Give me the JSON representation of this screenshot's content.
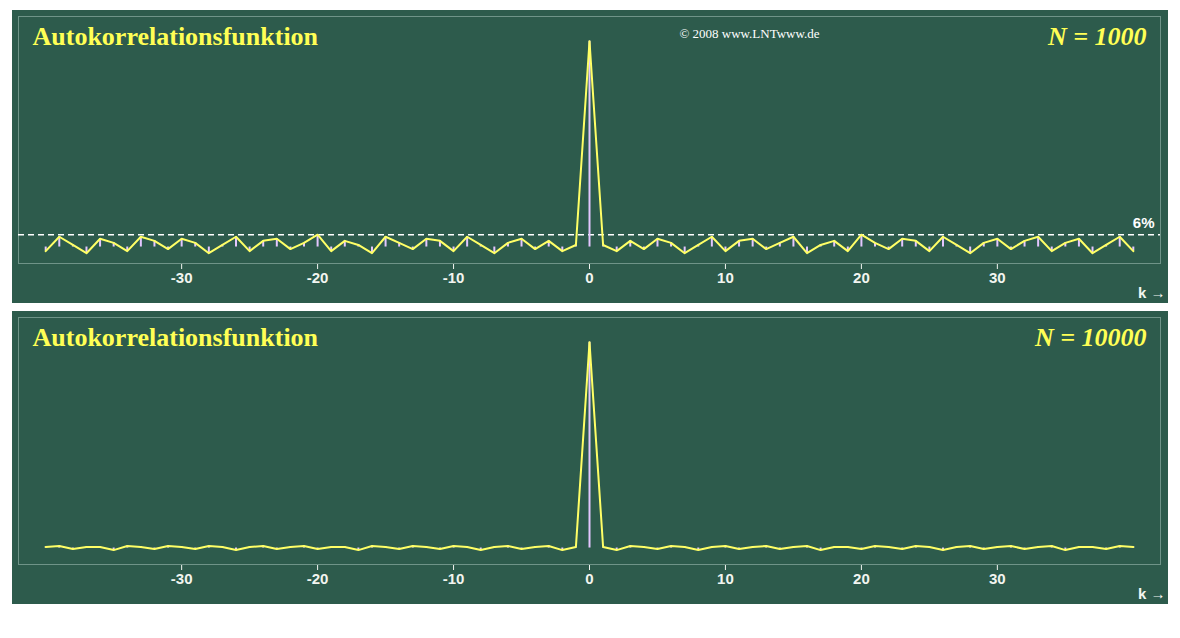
{
  "chart_data": [
    {
      "type": "stem",
      "title": "Autokorrelationsfunktion",
      "annotation": "N = 1000",
      "credit": "© 2008 www.LNTwww.de",
      "xlabel": "k →",
      "x": [
        -40,
        -39,
        -38,
        -37,
        -36,
        -35,
        -34,
        -33,
        -32,
        -31,
        -30,
        -29,
        -28,
        -27,
        -26,
        -25,
        -24,
        -23,
        -22,
        -21,
        -20,
        -19,
        -18,
        -17,
        -16,
        -15,
        -14,
        -13,
        -12,
        -11,
        -10,
        -9,
        -8,
        -7,
        -6,
        -5,
        -4,
        -3,
        -2,
        -1,
        0,
        1,
        2,
        3,
        4,
        5,
        6,
        7,
        8,
        9,
        10,
        11,
        12,
        13,
        14,
        15,
        16,
        17,
        18,
        19,
        20,
        21,
        22,
        23,
        24,
        25,
        26,
        27,
        28,
        29,
        30,
        31,
        32,
        33,
        34,
        35,
        36,
        37,
        38,
        39,
        40
      ],
      "values": [
        -0.02,
        0.05,
        0.01,
        -0.03,
        0.04,
        0.02,
        -0.02,
        0.05,
        0.03,
        -0.01,
        0.04,
        0.02,
        -0.03,
        0.01,
        0.05,
        -0.02,
        0.03,
        0.04,
        -0.01,
        0.02,
        0.06,
        -0.02,
        0.03,
        0.01,
        -0.03,
        0.05,
        0.02,
        -0.01,
        0.04,
        0.03,
        -0.02,
        0.05,
        0.01,
        -0.03,
        0.02,
        0.04,
        -0.01,
        0.03,
        -0.02,
        0.01,
        1,
        0.01,
        -0.02,
        0.03,
        -0.01,
        0.04,
        0.02,
        -0.03,
        0.01,
        0.05,
        -0.02,
        0.03,
        0.04,
        -0.01,
        0.02,
        0.05,
        -0.03,
        0.01,
        0.03,
        -0.02,
        0.06,
        0.02,
        -0.01,
        0.04,
        0.03,
        -0.02,
        0.05,
        0.01,
        -0.03,
        0.02,
        0.04,
        -0.01,
        0.03,
        0.05,
        -0.02,
        0.02,
        0.04,
        -0.03,
        0.01,
        0.05,
        -0.02
      ],
      "color": "#ffff66",
      "xlim": [
        -42,
        42
      ],
      "xticks": [
        -30,
        -20,
        -10,
        0,
        10,
        20,
        30
      ],
      "ylim": [
        -0.08,
        1.12
      ],
      "tick_labels": "x",
      "reference_line": {
        "value": 0.06,
        "label": "6%"
      }
    },
    {
      "type": "stem",
      "title": "Autokorrelationsfunktion",
      "annotation": "N = 10000",
      "xlabel": "k →",
      "x": [
        -40,
        -39,
        -38,
        -37,
        -36,
        -35,
        -34,
        -33,
        -32,
        -31,
        -30,
        -29,
        -28,
        -27,
        -26,
        -25,
        -24,
        -23,
        -22,
        -21,
        -20,
        -19,
        -18,
        -17,
        -16,
        -15,
        -14,
        -13,
        -12,
        -11,
        -10,
        -9,
        -8,
        -7,
        -6,
        -5,
        -4,
        -3,
        -2,
        -1,
        0,
        1,
        2,
        3,
        4,
        5,
        6,
        7,
        8,
        9,
        10,
        11,
        12,
        13,
        14,
        15,
        16,
        17,
        18,
        19,
        20,
        21,
        22,
        23,
        24,
        25,
        26,
        27,
        28,
        29,
        30,
        31,
        32,
        33,
        34,
        35,
        36,
        37,
        38,
        39,
        40
      ],
      "values": [
        0.005,
        0.01,
        -0.005,
        0.005,
        0.005,
        -0.01,
        0.01,
        0.005,
        -0.005,
        0.01,
        0.005,
        -0.005,
        0.01,
        0.005,
        -0.01,
        0.005,
        0.01,
        -0.005,
        0.005,
        0.01,
        -0.005,
        0.005,
        0.005,
        -0.01,
        0.01,
        0.005,
        -0.005,
        0.01,
        0.005,
        -0.005,
        0.01,
        0.005,
        -0.01,
        0.005,
        0.01,
        -0.005,
        0.005,
        0.01,
        -0.01,
        0.005,
        1,
        0.005,
        -0.01,
        0.01,
        0.005,
        -0.005,
        0.01,
        0.005,
        -0.01,
        0.005,
        0.01,
        -0.005,
        0.005,
        0.01,
        -0.005,
        0.005,
        0.01,
        -0.01,
        0.005,
        0.005,
        -0.005,
        0.01,
        0.005,
        -0.005,
        0.01,
        0.005,
        -0.01,
        0.005,
        0.01,
        -0.005,
        0.005,
        0.01,
        -0.005,
        0.005,
        0.01,
        -0.01,
        0.005,
        0.005,
        -0.005,
        0.01,
        0.005
      ],
      "color": "#ffff66",
      "xlim": [
        -42,
        42
      ],
      "xticks": [
        -30,
        -20,
        -10,
        0,
        10,
        20,
        30
      ],
      "ylim": [
        -0.08,
        1.12
      ],
      "tick_labels": "x"
    }
  ]
}
